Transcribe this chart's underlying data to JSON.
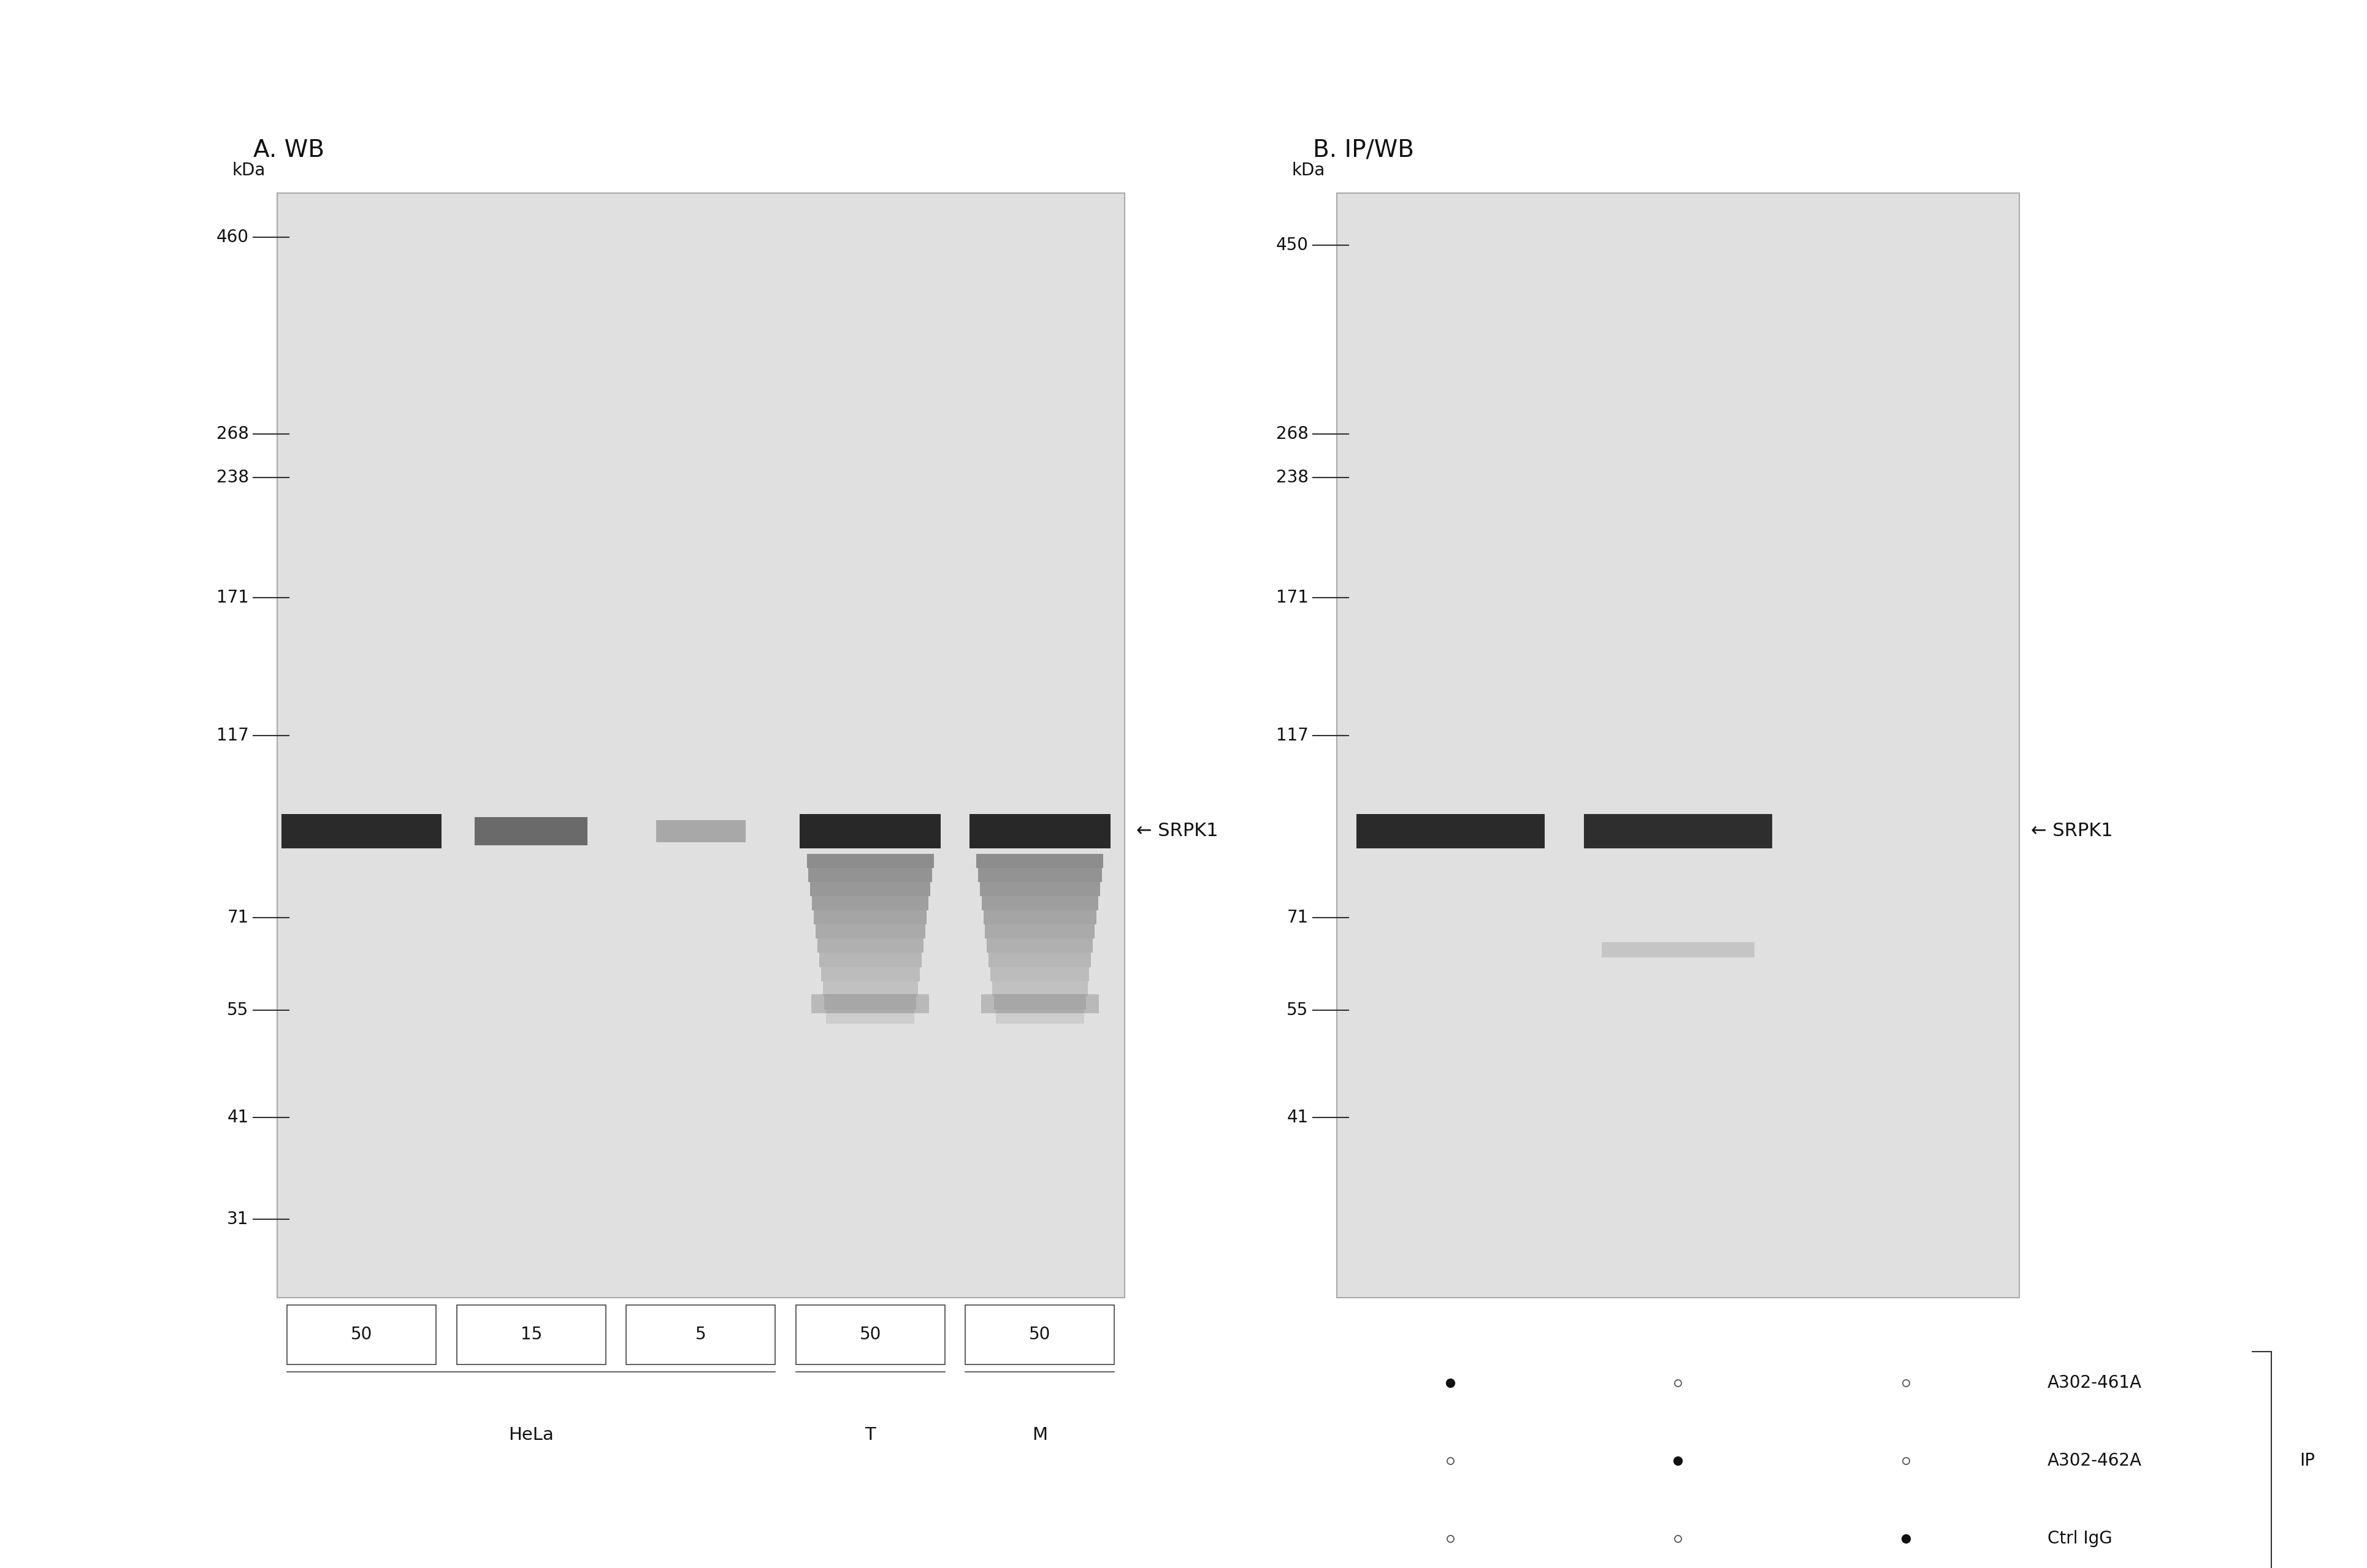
{
  "white_bg": "#ffffff",
  "blot_bg": "#e0e0e0",
  "outer_bg": "#f5f5f5",
  "panel_A_title": "A. WB",
  "panel_B_title": "B. IP/WB",
  "kDa_markers_A": [
    460,
    268,
    238,
    171,
    117,
    71,
    55,
    41,
    31
  ],
  "kDa_markers_B": [
    450,
    268,
    238,
    171,
    117,
    71,
    55,
    41
  ],
  "col_labels_A": [
    "50",
    "15",
    "5",
    "50",
    "50"
  ],
  "group_labels_A": [
    [
      "HeLa",
      0,
      2
    ],
    [
      "T",
      3,
      3
    ],
    [
      "M",
      4,
      4
    ]
  ],
  "srpk1_label": "← SRPK1",
  "panel_B_rows": [
    {
      "label": "A302-461A",
      "dots": [
        "filled",
        "open",
        "open"
      ]
    },
    {
      "label": "A302-462A",
      "dots": [
        "open",
        "filled",
        "open"
      ]
    },
    {
      "label": "Ctrl IgG",
      "dots": [
        "open",
        "open",
        "filled"
      ]
    }
  ],
  "panel_B_ip_label": "IP",
  "font_size_title": 28,
  "font_size_kda_label": 20,
  "font_size_marker": 20,
  "font_size_col": 20,
  "font_size_arrow": 22,
  "font_size_table": 20,
  "font_size_group": 21
}
